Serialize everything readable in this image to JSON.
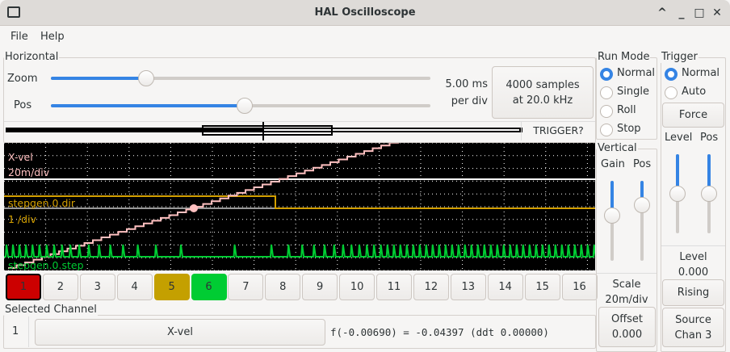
{
  "window": {
    "title": "HAL Oscilloscope",
    "controls": [
      "^",
      "_",
      "□",
      "✕"
    ]
  },
  "menu": [
    "File",
    "Help"
  ],
  "horizontal": {
    "label": "Horizontal",
    "zoom_label": "Zoom",
    "zoom_value": 0.25,
    "pos_label": "Pos",
    "pos_value": 0.51,
    "rate_line1": "5.00 ms",
    "rate_line2": "per div",
    "samples_line1": "4000 samples",
    "samples_line2": "at 20.0 kHz",
    "trigger_status": "TRIGGER?"
  },
  "scope": {
    "channel_labels": [
      {
        "name": "X-vel",
        "scale": "20m/div",
        "color": "#ffc0c0"
      },
      {
        "name": "stepgen.0.dir",
        "scale": "1 /div",
        "color": "#d4a000"
      },
      {
        "name": "stepgen.0.step",
        "color": "#00cc33"
      }
    ]
  },
  "channels": {
    "buttons": [
      "1",
      "2",
      "3",
      "4",
      "5",
      "6",
      "7",
      "8",
      "9",
      "10",
      "11",
      "12",
      "13",
      "14",
      "15",
      "16"
    ],
    "colors": {
      "1": "#cc0000",
      "5": "#c4a000",
      "6": "#00cc33"
    },
    "selected": "1"
  },
  "selected_channel": {
    "label": "Selected Channel",
    "number": "1",
    "name": "X-vel",
    "readout": "f(-0.00690) = -0.04397 (ddt  0.00000)"
  },
  "run_mode": {
    "label": "Run Mode",
    "options": [
      "Normal",
      "Single",
      "Roll",
      "Stop"
    ],
    "selected": "Normal"
  },
  "vertical": {
    "label": "Vertical",
    "gain_label": "Gain",
    "pos_label": "Pos",
    "gain_value": 0.43,
    "pos_value": 0.3,
    "scale_label": "Scale",
    "scale_value": "20m/div",
    "offset_label": "Offset",
    "offset_value": "0.000"
  },
  "trigger": {
    "label": "Trigger",
    "options": [
      "Normal",
      "Auto"
    ],
    "selected": "Normal",
    "force_label": "Force",
    "level_label": "Level",
    "pos_label": "Pos",
    "level_slider": 0.5,
    "pos_slider": 0.5,
    "level_text": "Level",
    "level_value": "0.000",
    "edge": "Rising",
    "source_line1": "Source",
    "source_line2": "Chan 3"
  }
}
